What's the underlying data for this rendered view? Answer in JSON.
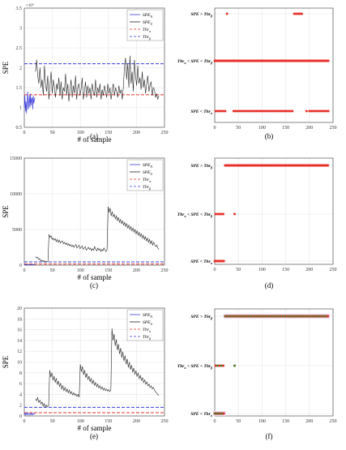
{
  "chart_data": [
    {
      "panel": "a",
      "caption": "(a)",
      "type": "line",
      "ylabel": "SPE",
      "xlabel": "# of sample",
      "xlim": [
        0,
        250
      ],
      "ylim": [
        0.5,
        3.5
      ],
      "exponent": "×10⁴",
      "xticks": [
        "0",
        "50",
        "100",
        "150",
        "200",
        "250"
      ],
      "yticks": [
        "0.5",
        "1",
        "1.5",
        "2",
        "2.5",
        "3",
        "3.5"
      ],
      "xtick_values": [
        0,
        50,
        100,
        150,
        200,
        250
      ],
      "ytick_values": [
        0.5,
        1,
        1.5,
        2,
        2.5,
        3,
        3.5
      ],
      "legend": [
        "SPE_N",
        "SPE_U",
        "Thr_α",
        "Thr_β"
      ],
      "legend_sub": [
        "N",
        "U",
        "α",
        "β"
      ],
      "thresholds": [
        {
          "name": "Thr_α",
          "value": 1.32,
          "color": "#e8312a"
        },
        {
          "name": "Thr_β",
          "value": 2.1,
          "color": "#3b3bdb"
        }
      ],
      "series_N": [
        1.0,
        1.3,
        0.9,
        1.15,
        0.85,
        1.2,
        1.4,
        0.95,
        1.1,
        1.3,
        1.0,
        1.35,
        1.05,
        1.2,
        1.25,
        0.95,
        1.3,
        1.1,
        1.2,
        1.25
      ],
      "series_U": [
        1.9,
        2.2,
        1.8,
        1.6,
        2.0,
        1.5,
        1.7,
        1.3,
        2.05,
        1.6,
        1.4,
        1.8,
        1.2,
        1.55,
        1.9,
        1.35,
        1.7,
        1.5,
        1.25,
        1.6,
        1.45,
        1.75,
        1.3,
        1.65,
        1.2,
        1.5,
        1.4,
        1.85,
        1.3,
        1.6,
        1.15,
        1.45,
        1.7,
        1.25,
        1.55,
        1.35,
        1.8,
        1.2,
        1.5,
        1.6,
        1.3,
        1.45,
        1.75,
        1.2,
        1.4,
        1.65,
        1.25,
        1.55,
        1.35,
        1.5,
        1.2,
        1.6,
        1.4,
        1.3,
        1.7,
        1.25,
        1.5,
        1.35,
        1.6,
        1.2,
        1.45,
        1.3,
        1.55,
        1.4,
        1.25,
        1.6,
        1.35,
        1.5,
        1.2,
        1.45,
        1.6,
        1.3,
        1.5,
        1.4,
        1.25,
        1.55,
        1.35,
        1.45,
        1.2,
        1.5,
        2.0,
        2.25,
        1.7,
        2.1,
        1.5,
        2.3,
        1.6,
        1.9,
        1.4,
        2.2,
        1.8,
        1.55,
        2.05,
        1.6,
        1.75,
        1.45,
        1.9,
        1.5,
        1.7,
        1.35,
        1.6,
        1.8,
        1.4,
        1.55,
        1.65,
        1.3,
        1.5,
        1.45,
        1.25,
        1.35,
        1.2,
        1.3
      ]
    },
    {
      "panel": "b",
      "caption": "(b)",
      "type": "scatter",
      "xlim": [
        0,
        250
      ],
      "xticks": [
        "0",
        "50",
        "100",
        "150",
        "200",
        "250"
      ],
      "xtick_values": [
        0,
        50,
        100,
        150,
        200,
        250
      ],
      "levels": [
        "SPE > Thr_β",
        "Thr_α < SPE < Thr_β",
        "SPE < Thr_α"
      ],
      "marker_color": "#e8312a",
      "top_points": [
        26,
        168,
        172,
        176,
        180,
        184
      ],
      "middle_range": [
        0,
        240
      ],
      "bottom_points": [
        2,
        6,
        10,
        14,
        18,
        22,
        40,
        44,
        48,
        52,
        56,
        60,
        64,
        68,
        72,
        76,
        80,
        84,
        88,
        92,
        96,
        100,
        104,
        108,
        112,
        116,
        120,
        124,
        128,
        132,
        136,
        140,
        144,
        148,
        152,
        156,
        160,
        164,
        194,
        200,
        204,
        208,
        212,
        216,
        220,
        224,
        228,
        232,
        236,
        240
      ]
    },
    {
      "panel": "c",
      "caption": "(c)",
      "type": "line",
      "ylabel": "SPE",
      "xlabel": "# of sample",
      "xlim": [
        0,
        250
      ],
      "ylim": [
        0,
        15000
      ],
      "xticks": [
        "0",
        "50",
        "100",
        "150",
        "200",
        "250"
      ],
      "yticks": [
        "0",
        "5000",
        "10000",
        "15000"
      ],
      "xtick_values": [
        0,
        50,
        100,
        150,
        200,
        250
      ],
      "ytick_values": [
        0,
        5000,
        10000,
        15000
      ],
      "legend": [
        "SPE_N",
        "SPE_U",
        "Thr_α",
        "Thr_β"
      ],
      "legend_sub": [
        "N",
        "U",
        "α",
        "β"
      ],
      "thresholds": [
        {
          "name": "Thr_α",
          "value": 150,
          "color": "#e8312a"
        },
        {
          "name": "Thr_β",
          "value": 450,
          "color": "#3b3bdb"
        }
      ],
      "series_N": [
        80,
        100,
        60,
        120,
        90,
        70,
        110,
        95,
        85,
        105,
        75,
        100,
        90,
        80,
        110,
        70,
        95,
        85,
        100,
        90
      ],
      "series_U": [
        1200,
        1000,
        1100,
        800,
        900,
        600,
        700,
        500,
        650,
        400,
        550,
        450,
        500,
        4300,
        3900,
        4100,
        3600,
        3800,
        3500,
        3700,
        3300,
        3600,
        3200,
        3500,
        3100,
        3300,
        3400,
        3000,
        3200,
        2900,
        3100,
        2800,
        3000,
        2700,
        2900,
        2600,
        2800,
        2500,
        2700,
        2900,
        2400,
        2600,
        2800,
        2300,
        2500,
        2700,
        2200,
        2400,
        2600,
        2100,
        2300,
        2500,
        2200,
        2400,
        2000,
        2300,
        2100,
        2600,
        2200,
        2000,
        2400,
        2100,
        2300,
        1900,
        2200,
        2000,
        2400,
        2100,
        1900,
        2200,
        8200,
        7400,
        8000,
        6900,
        7500,
        6800,
        7100,
        6500,
        6900,
        6200,
        6700,
        6000,
        6400,
        5800,
        6200,
        5600,
        6000,
        5400,
        5800,
        5200,
        5600,
        5000,
        5400,
        4800,
        5200,
        4600,
        5000,
        4400,
        4800,
        4200,
        4600,
        4000,
        4400,
        3800,
        4200,
        3600,
        4000,
        3400,
        3800,
        3200,
        3600,
        3000,
        3400,
        2800,
        3200,
        2900,
        2600,
        2800,
        2400,
        2200
      ]
    },
    {
      "panel": "d",
      "caption": "(d)",
      "type": "scatter",
      "xlim": [
        0,
        250
      ],
      "xticks": [
        "0",
        "50",
        "100",
        "150",
        "200",
        "250"
      ],
      "xtick_values": [
        0,
        50,
        100,
        150,
        200,
        250
      ],
      "levels": [
        "SPE > Thr_β",
        "Thr_α < SPE < Thr_β",
        "SPE < Thr_α"
      ],
      "marker_color": "#e8312a",
      "top_range": [
        22,
        240
      ],
      "middle_points": [
        2,
        6,
        10,
        14,
        18,
        42
      ],
      "bottom_range": [
        0,
        20
      ]
    },
    {
      "panel": "e",
      "caption": "(e)",
      "type": "line",
      "ylabel": "SPE",
      "xlabel": "# of sample",
      "xlim": [
        0,
        250
      ],
      "ylim": [
        0,
        20
      ],
      "xticks": [
        "0",
        "50",
        "100",
        "150",
        "200",
        "250"
      ],
      "yticks": [
        "0",
        "2",
        "4",
        "6",
        "8",
        "10",
        "12",
        "14",
        "16",
        "18",
        "20"
      ],
      "xtick_values": [
        0,
        50,
        100,
        150,
        200,
        250
      ],
      "ytick_values": [
        0,
        2,
        4,
        6,
        8,
        10,
        12,
        14,
        16,
        18,
        20
      ],
      "legend": [
        "SPE_N",
        "SPE_U",
        "Thr_α",
        "Thr_β"
      ],
      "legend_sub": [
        "N",
        "U",
        "α",
        "β"
      ],
      "thresholds": [
        {
          "name": "Thr_α",
          "value": 0.6,
          "color": "#e8312a"
        },
        {
          "name": "Thr_β",
          "value": 1.6,
          "color": "#3b3bdb"
        }
      ],
      "series_N": [
        0.3,
        0.5,
        0.2,
        0.4,
        0.3,
        0.6,
        0.2,
        0.4,
        0.5,
        0.3,
        0.2,
        0.4,
        0.3,
        0.5,
        0.2,
        0.4,
        0.3,
        0.5,
        0.4,
        0.3
      ],
      "series_U": [
        3.2,
        2.8,
        3.4,
        2.5,
        2.9,
        2.2,
        2.6,
        1.8,
        2.3,
        1.6,
        2.0,
        1.7,
        1.9,
        8.5,
        7.2,
        8.0,
        6.6,
        7.4,
        6.2,
        7.0,
        5.8,
        6.5,
        5.4,
        6.1,
        5.0,
        5.6,
        4.7,
        5.3,
        4.5,
        5.0,
        4.3,
        4.8,
        4.1,
        4.5,
        3.9,
        4.3,
        3.8,
        4.1,
        3.6,
        4.0,
        3.5,
        9.6,
        8.2,
        9.2,
        7.6,
        8.5,
        7.1,
        7.9,
        6.7,
        7.4,
        6.3,
        7.0,
        6.0,
        6.6,
        5.7,
        6.2,
        5.4,
        5.9,
        5.2,
        5.6,
        5.0,
        5.4,
        4.8,
        5.2,
        4.7,
        5.0,
        4.6,
        4.9,
        4.5,
        4.8,
        16.2,
        14.0,
        15.2,
        13.0,
        14.2,
        12.2,
        13.3,
        11.5,
        12.6,
        10.8,
        11.9,
        10.2,
        11.2,
        9.6,
        10.6,
        9.0,
        10.0,
        8.6,
        9.4,
        8.1,
        8.9,
        7.7,
        8.4,
        7.3,
        8.0,
        6.9,
        7.5,
        6.6,
        7.1,
        6.2,
        6.7,
        5.9,
        6.3,
        5.6,
        5.9,
        5.3,
        5.6,
        5.0,
        5.3,
        4.8,
        4.5,
        4.2,
        4.0,
        3.8
      ]
    },
    {
      "panel": "f",
      "caption": "(f)",
      "type": "scatter",
      "xlim": [
        0,
        250
      ],
      "xticks": [
        "0",
        "50",
        "100",
        "150",
        "200",
        "250"
      ],
      "xtick_values": [
        0,
        50,
        100,
        150,
        200,
        250
      ],
      "levels": [
        "SPE > Thr_β",
        "Thr_α < SPE < Thr_β",
        "SPE < Thr_α"
      ],
      "marker_color": "#e8312a",
      "marker_color_alt": "#4a7a28",
      "highlight_color": "#f3d7f0",
      "top_range": [
        22,
        240
      ],
      "middle_points": [
        2,
        6,
        10,
        14,
        18,
        42
      ],
      "bottom_range": [
        0,
        20
      ]
    }
  ]
}
